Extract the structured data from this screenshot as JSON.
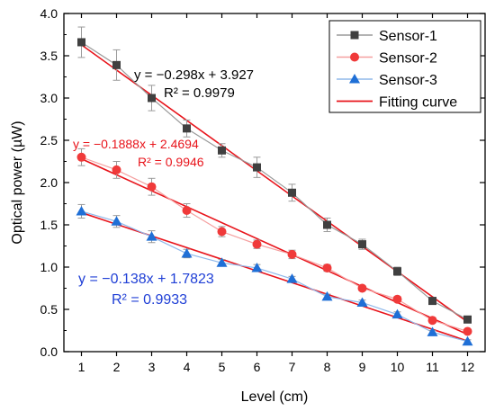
{
  "chart_data": {
    "type": "line",
    "xlabel": "Level (cm)",
    "ylabel": "Optical power (µW)",
    "xlim": [
      0.5,
      12.5
    ],
    "ylim": [
      0.0,
      4.0
    ],
    "xticks": [
      1,
      2,
      3,
      4,
      5,
      6,
      7,
      8,
      9,
      10,
      11,
      12
    ],
    "yticks": [
      "0.0",
      "0.5",
      "1.0",
      "1.5",
      "2.0",
      "2.5",
      "3.0",
      "3.5",
      "4.0"
    ],
    "grid": false,
    "legend_position": "top-right",
    "x": [
      1,
      2,
      3,
      4,
      5,
      6,
      7,
      8,
      9,
      10,
      11,
      12
    ],
    "series": [
      {
        "name": "Sensor-1",
        "marker": "square",
        "color": "#404040",
        "line_color": "#9a9a9a",
        "values": [
          3.66,
          3.39,
          3.0,
          2.64,
          2.38,
          2.18,
          1.88,
          1.5,
          1.27,
          0.95,
          0.6,
          0.38
        ],
        "errors": [
          0.18,
          0.18,
          0.15,
          0.1,
          0.08,
          0.12,
          0.1,
          0.08,
          0.06,
          0.05,
          0.04,
          0.03
        ]
      },
      {
        "name": "Sensor-2",
        "marker": "circle",
        "color": "#f03a3a",
        "line_color": "#f5a0a0",
        "values": [
          2.3,
          2.15,
          1.95,
          1.67,
          1.42,
          1.27,
          1.15,
          0.99,
          0.75,
          0.62,
          0.37,
          0.24
        ],
        "errors": [
          0.1,
          0.1,
          0.1,
          0.08,
          0.06,
          0.05,
          0.05,
          0.04,
          0.03,
          0.03,
          0.03,
          0.02
        ]
      },
      {
        "name": "Sensor-3",
        "marker": "triangle",
        "color": "#1f6fd6",
        "line_color": "#8fb8ea",
        "values": [
          1.66,
          1.54,
          1.36,
          1.16,
          1.05,
          0.99,
          0.86,
          0.65,
          0.58,
          0.44,
          0.23,
          0.12
        ],
        "errors": [
          0.08,
          0.07,
          0.07,
          0.05,
          0.04,
          0.04,
          0.03,
          0.03,
          0.03,
          0.03,
          0.02,
          0.02
        ]
      }
    ],
    "fits": [
      {
        "name": "Fitting curve",
        "color": "#e8141b",
        "slope": -0.298,
        "intercept": 3.927,
        "equation": "y = −0.298x + 3.927",
        "r2": "R² = 0.9979",
        "label_color": "#000000"
      },
      {
        "color": "#e8141b",
        "slope": -0.1888,
        "intercept": 2.4694,
        "equation": "y = −0.1888x + 2.4694",
        "r2": "R² = 0.9946",
        "label_color": "#e8141b"
      },
      {
        "color": "#e8141b",
        "slope": -0.138,
        "intercept": 1.7823,
        "equation": "y = −0.138x + 1.7823",
        "r2": "R² = 0.9933",
        "label_color": "#1f3fd6"
      }
    ]
  }
}
